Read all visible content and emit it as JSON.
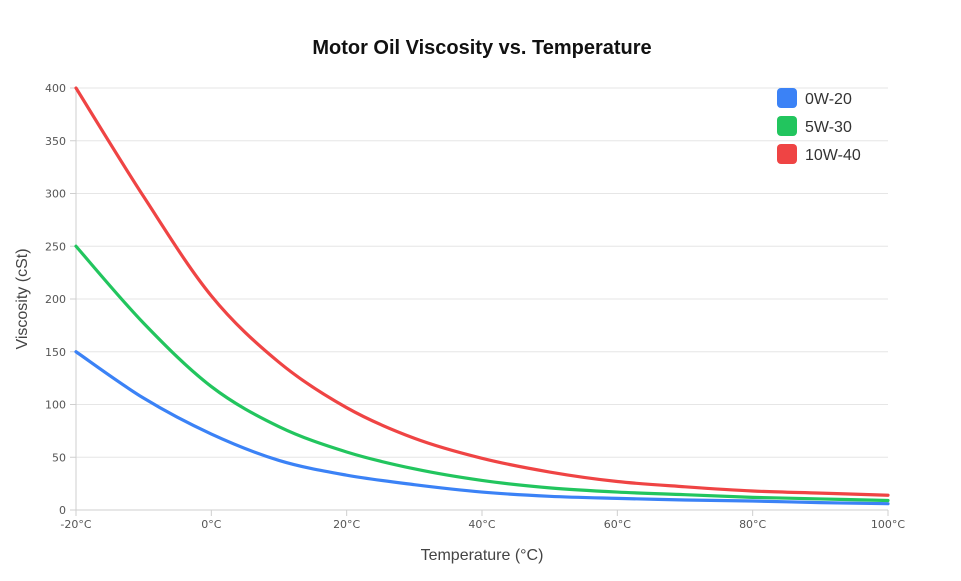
{
  "chart_data": {
    "type": "line",
    "title": "Motor Oil Viscosity vs. Temperature",
    "xlabel": "Temperature (°C)",
    "ylabel": "Viscosity (cSt)",
    "xlim": [
      -20,
      100
    ],
    "ylim": [
      0,
      400
    ],
    "x_ticks": [
      -20,
      0,
      20,
      40,
      60,
      80,
      100
    ],
    "x_tick_labels": [
      "-20°C",
      "0°C",
      "20°C",
      "40°C",
      "60°C",
      "80°C",
      "100°C"
    ],
    "y_ticks": [
      0,
      50,
      100,
      150,
      200,
      250,
      300,
      350,
      400
    ],
    "y_tick_labels": [
      "0",
      "50",
      "100",
      "150",
      "200",
      "250",
      "300",
      "350",
      "400"
    ],
    "grid": true,
    "legend_position": "top-right",
    "x": [
      -20,
      -10,
      0,
      10,
      20,
      30,
      40,
      50,
      60,
      70,
      80,
      90,
      100
    ],
    "series": [
      {
        "name": "0W-20",
        "color": "#3b82f6",
        "values": [
          150,
          106,
          72,
          47,
          33,
          24,
          17,
          13,
          11,
          9.5,
          8.5,
          7,
          6
        ]
      },
      {
        "name": "5W-30",
        "color": "#22c55e",
        "values": [
          250,
          177,
          117,
          79,
          55,
          39,
          28,
          21,
          17,
          14.5,
          12,
          10.5,
          9
        ]
      },
      {
        "name": "10W-40",
        "color": "#ef4444",
        "values": [
          400,
          297,
          203,
          140,
          97,
          68,
          49,
          36,
          27,
          22,
          18,
          16,
          14
        ]
      }
    ]
  }
}
